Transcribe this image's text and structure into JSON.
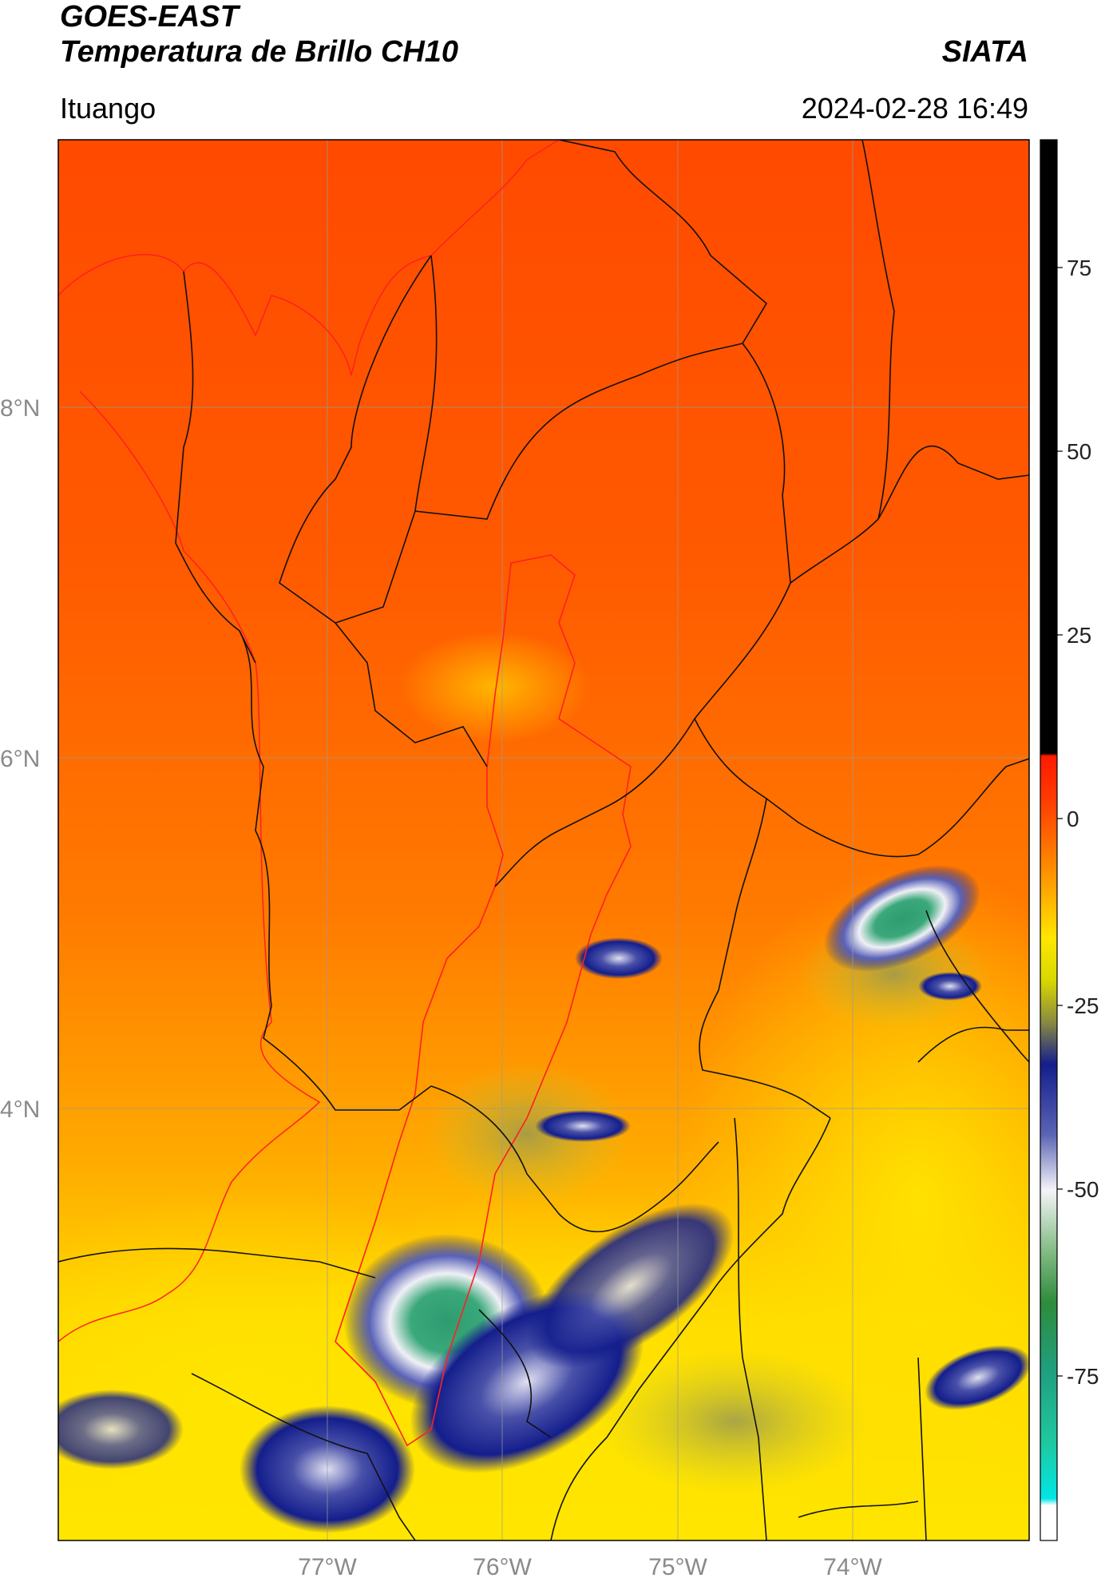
{
  "header": {
    "satellite": "GOES-EAST",
    "product": "Temperatura de Brillo CH10",
    "brand": "SIATA",
    "region": "Ituango",
    "datetime": "2024-02-28 16:49"
  },
  "map": {
    "lat_ticks": [
      "8°N",
      "6°N",
      "4°N"
    ],
    "lon_ticks": [
      "77°W",
      "76°W",
      "75°W",
      "74°W"
    ],
    "grid": true
  },
  "colorbar": {
    "ticks": [
      "75",
      "50",
      "25",
      "0",
      "-25",
      "-50",
      "-75"
    ],
    "colors": {
      "warm_top": "#000000",
      "red": "#ff1a00",
      "orange": "#ff8c00",
      "yellow": "#ffe600",
      "olive": "#8a8a40",
      "navy": "#141e8c",
      "white": "#f4f4f8",
      "green": "#2e8c3c",
      "teal": "#1fc8a0",
      "cyan": "#00e6e6"
    }
  }
}
